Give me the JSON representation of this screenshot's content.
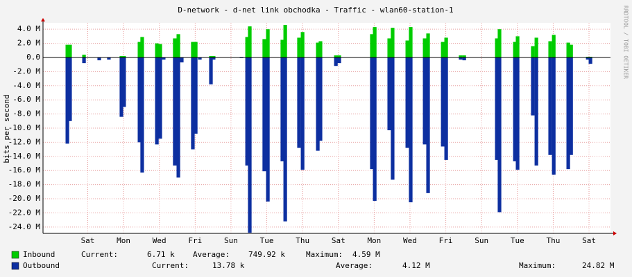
{
  "chart_data": {
    "type": "bar",
    "title": "D-network - d-net link obchodka - Traffic - wlan60-station-1",
    "y_label": "bits per second",
    "watermark": "RRDTOOL / TOBI OETIKER",
    "xlim": [
      0,
      31.7
    ],
    "ylim": [
      -24.9,
      4.9
    ],
    "grid": true,
    "xticks": [
      {
        "value": 2.5,
        "label": "Sat"
      },
      {
        "value": 4.5,
        "label": "Mon"
      },
      {
        "value": 6.5,
        "label": "Wed"
      },
      {
        "value": 8.5,
        "label": "Fri"
      },
      {
        "value": 10.5,
        "label": "Sun"
      },
      {
        "value": 12.5,
        "label": "Tue"
      },
      {
        "value": 14.5,
        "label": "Thu"
      },
      {
        "value": 16.5,
        "label": "Sat"
      },
      {
        "value": 18.5,
        "label": "Mon"
      },
      {
        "value": 20.5,
        "label": "Wed"
      },
      {
        "value": 22.5,
        "label": "Fri"
      },
      {
        "value": 24.5,
        "label": "Sun"
      },
      {
        "value": 26.5,
        "label": "Tue"
      },
      {
        "value": 28.5,
        "label": "Thu"
      },
      {
        "value": 30.5,
        "label": "Sat"
      }
    ],
    "yticks": [
      {
        "value": 4,
        "label": "4.0 M"
      },
      {
        "value": 2,
        "label": "2.0 M"
      },
      {
        "value": 0,
        "label": "0.0"
      },
      {
        "value": -2,
        "label": "-2.0 M"
      },
      {
        "value": -4,
        "label": "-4.0 M"
      },
      {
        "value": -6,
        "label": "-6.0 M"
      },
      {
        "value": -8,
        "label": "-8.0 M"
      },
      {
        "value": -10,
        "label": "-10.0 M"
      },
      {
        "value": -12,
        "label": "-12.0 M"
      },
      {
        "value": -14,
        "label": "-14.0 M"
      },
      {
        "value": -16,
        "label": "-16.0 M"
      },
      {
        "value": -18,
        "label": "-18.0 M"
      },
      {
        "value": -20,
        "label": "-20.0 M"
      },
      {
        "value": -22,
        "label": "-22.0 M"
      },
      {
        "value": -24,
        "label": "-24.0 M"
      }
    ],
    "x": [
      1.36,
      1.51,
      2.29,
      3.14,
      3.68,
      4.38,
      4.53,
      5.39,
      5.54,
      6.36,
      6.55,
      6.74,
      7.36,
      7.56,
      7.75,
      8.37,
      8.53,
      8.76,
      9.38,
      9.53,
      11.09,
      11.4,
      11.55,
      12.36,
      12.56,
      13.37,
      13.53,
      14.3,
      14.5,
      15.35,
      15.5,
      16.36,
      16.55,
      18.37,
      18.53,
      19.34,
      19.53,
      20.35,
      20.54,
      21.32,
      21.51,
      22.33,
      22.52,
      23.33,
      23.53,
      25.35,
      25.5,
      26.36,
      26.51,
      27.36,
      27.56,
      28.33,
      28.53,
      29.34,
      29.5,
      30.43,
      30.58
    ],
    "series": [
      {
        "name": "Inbound",
        "color": "#00cc00",
        "values": [
          1.8,
          1.8,
          0.4,
          0,
          0,
          0.2,
          0.2,
          2.2,
          2.9,
          2.0,
          1.9,
          0,
          2.7,
          3.3,
          0,
          2.2,
          2.2,
          0,
          0.2,
          0.2,
          0,
          2.9,
          4.4,
          2.6,
          4.0,
          2.5,
          4.6,
          2.8,
          3.6,
          2.1,
          2.3,
          0.3,
          0.3,
          3.3,
          4.3,
          2.7,
          4.2,
          2.4,
          4.3,
          2.7,
          3.4,
          2.2,
          2.8,
          0.3,
          0.3,
          2.7,
          4.0,
          2.2,
          3.0,
          1.6,
          2.8,
          2.3,
          3.2,
          2.1,
          1.8,
          0.1,
          0.1
        ],
        "stats": [
          {
            "label": "Current:",
            "value": "6.71 k"
          },
          {
            "label": "Average:",
            "value": "749.92 k"
          },
          {
            "label": "Maximum:",
            "value": "4.59 M"
          }
        ]
      },
      {
        "name": "Outbound",
        "color": "#0d2fa0",
        "values": [
          -12.2,
          -9,
          -0.8,
          -0.4,
          -0.3,
          -8.4,
          -7,
          -12,
          -16.3,
          -12.3,
          -11.5,
          -0.3,
          -15.3,
          -17,
          -0.7,
          -13,
          -10.8,
          -0.3,
          -3.8,
          -0.3,
          -0.1,
          -15.3,
          -24.8,
          -16.1,
          -20.4,
          -14.7,
          -23.2,
          -12.8,
          -15.9,
          -13.2,
          -11.8,
          -1.2,
          -0.8,
          -15.8,
          -20.3,
          -10.3,
          -17.3,
          -12.8,
          -20.5,
          -12.3,
          -19.2,
          -12.6,
          -14.5,
          -0.3,
          -0.4,
          -14.5,
          -21.9,
          -14.7,
          -15.9,
          -8.2,
          -15.3,
          -13.8,
          -16.6,
          -15.8,
          -13.8,
          -0.3,
          -0.9
        ],
        "stats": [
          {
            "label": "Current:",
            "value": "13.78 k"
          },
          {
            "label": "Average:",
            "value": "4.12 M"
          },
          {
            "label": "Maximum:",
            "value": "24.82 M"
          }
        ]
      }
    ]
  }
}
